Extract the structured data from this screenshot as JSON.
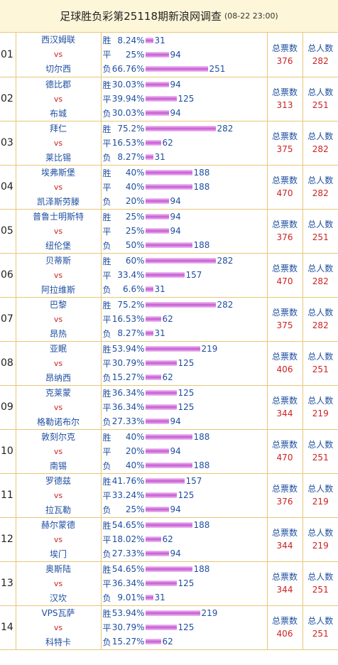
{
  "header": {
    "title": "足球胜负彩第25118期新浪网调查",
    "subtitle": "(08-22 23:00)"
  },
  "labels": {
    "vs": "vs",
    "total_votes": "总票数",
    "total_people": "总人数",
    "win": "胜",
    "draw": "平",
    "lose": "负"
  },
  "matches": [
    {
      "num": "01",
      "home": "西汉姆联",
      "away": "切尔西",
      "win_pct": "8.24%",
      "win": 31,
      "draw_pct": "25%",
      "draw": 94,
      "lose_pct": "66.76%",
      "lose": 251,
      "total_votes": 376,
      "total_people": 282
    },
    {
      "num": "02",
      "home": "德比郡",
      "away": "布城",
      "win_pct": "30.03%",
      "win": 94,
      "draw_pct": "39.94%",
      "draw": 125,
      "lose_pct": "30.03%",
      "lose": 94,
      "total_votes": 313,
      "total_people": 251
    },
    {
      "num": "03",
      "home": "拜仁",
      "away": "莱比锡",
      "win_pct": "75.2%",
      "win": 282,
      "draw_pct": "16.53%",
      "draw": 62,
      "lose_pct": "8.27%",
      "lose": 31,
      "total_votes": 375,
      "total_people": 282
    },
    {
      "num": "04",
      "home": "埃弗斯堡",
      "away": "凯泽斯劳滕",
      "win_pct": "40%",
      "win": 188,
      "draw_pct": "40%",
      "draw": 188,
      "lose_pct": "20%",
      "lose": 94,
      "total_votes": 470,
      "total_people": 282
    },
    {
      "num": "05",
      "home": "普鲁士明斯特",
      "away": "纽伦堡",
      "win_pct": "25%",
      "win": 94,
      "draw_pct": "25%",
      "draw": 94,
      "lose_pct": "50%",
      "lose": 188,
      "total_votes": 376,
      "total_people": 251
    },
    {
      "num": "06",
      "home": "贝蒂斯",
      "away": "阿拉维斯",
      "win_pct": "60%",
      "win": 282,
      "draw_pct": "33.4%",
      "draw": 157,
      "lose_pct": "6.6%",
      "lose": 31,
      "total_votes": 470,
      "total_people": 282
    },
    {
      "num": "07",
      "home": "巴黎",
      "away": "昂热",
      "win_pct": "75.2%",
      "win": 282,
      "draw_pct": "16.53%",
      "draw": 62,
      "lose_pct": "8.27%",
      "lose": 31,
      "total_votes": 375,
      "total_people": 282
    },
    {
      "num": "08",
      "home": "亚眠",
      "away": "昂纳西",
      "win_pct": "53.94%",
      "win": 219,
      "draw_pct": "30.79%",
      "draw": 125,
      "lose_pct": "15.27%",
      "lose": 62,
      "total_votes": 406,
      "total_people": 251
    },
    {
      "num": "09",
      "home": "克莱蒙",
      "away": "格勒诺布尔",
      "win_pct": "36.34%",
      "win": 125,
      "draw_pct": "36.34%",
      "draw": 125,
      "lose_pct": "27.33%",
      "lose": 94,
      "total_votes": 344,
      "total_people": 219
    },
    {
      "num": "10",
      "home": "敦刻尔克",
      "away": "南锡",
      "win_pct": "40%",
      "win": 188,
      "draw_pct": "20%",
      "draw": 94,
      "lose_pct": "40%",
      "lose": 188,
      "total_votes": 470,
      "total_people": 251
    },
    {
      "num": "11",
      "home": "罗德兹",
      "away": "拉瓦勒",
      "win_pct": "41.76%",
      "win": 157,
      "draw_pct": "33.24%",
      "draw": 125,
      "lose_pct": "25%",
      "lose": 94,
      "total_votes": 376,
      "total_people": 219
    },
    {
      "num": "12",
      "home": "赫尔蒙德",
      "away": "埃门",
      "win_pct": "54.65%",
      "win": 188,
      "draw_pct": "18.02%",
      "draw": 62,
      "lose_pct": "27.33%",
      "lose": 94,
      "total_votes": 344,
      "total_people": 219
    },
    {
      "num": "13",
      "home": "奥斯陆",
      "away": "汉坎",
      "win_pct": "54.65%",
      "win": 188,
      "draw_pct": "36.34%",
      "draw": 125,
      "lose_pct": "9.01%",
      "lose": 31,
      "total_votes": 344,
      "total_people": 251
    },
    {
      "num": "14",
      "home": "VPS瓦萨",
      "away": "科特卡",
      "win_pct": "53.94%",
      "win": 219,
      "draw_pct": "30.79%",
      "draw": 125,
      "lose_pct": "15.27%",
      "lose": 62,
      "total_votes": 406,
      "total_people": 251
    }
  ]
}
